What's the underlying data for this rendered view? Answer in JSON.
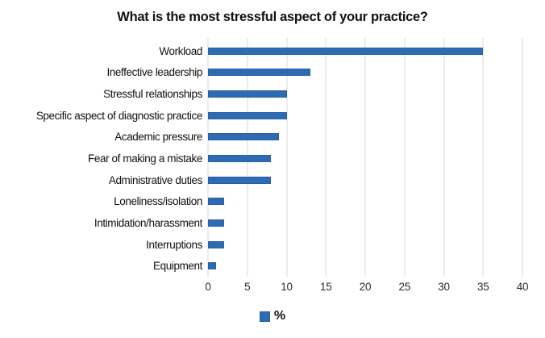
{
  "chart_data": {
    "type": "bar",
    "orientation": "horizontal",
    "title": "What is the most stressful aspect of your practice?",
    "categories": [
      "Workload",
      "Ineffective leadership",
      "Stressful relationships",
      "Specific aspect of diagnostic practice",
      "Academic pressure",
      "Fear of making a mistake",
      "Administrative duties",
      "Loneliness/isolation",
      "Intimidation/harassment",
      "Interruptions",
      "Equipment"
    ],
    "values": [
      35,
      13,
      10,
      10,
      9,
      8,
      8,
      2,
      2,
      2,
      1
    ],
    "xlabel": "",
    "ylabel": "",
    "xlim": [
      0,
      40
    ],
    "xticks": [
      0,
      5,
      10,
      15,
      20,
      25,
      30,
      35,
      40
    ],
    "grid": true,
    "legend": {
      "label": "%",
      "position": "bottom-center"
    },
    "colors": {
      "bar": "#2d6cb4",
      "bar_border": "#27619f",
      "gridline": "#d9d9d9",
      "title_text": "#111111",
      "tick_text": "#2b2b2b"
    }
  }
}
